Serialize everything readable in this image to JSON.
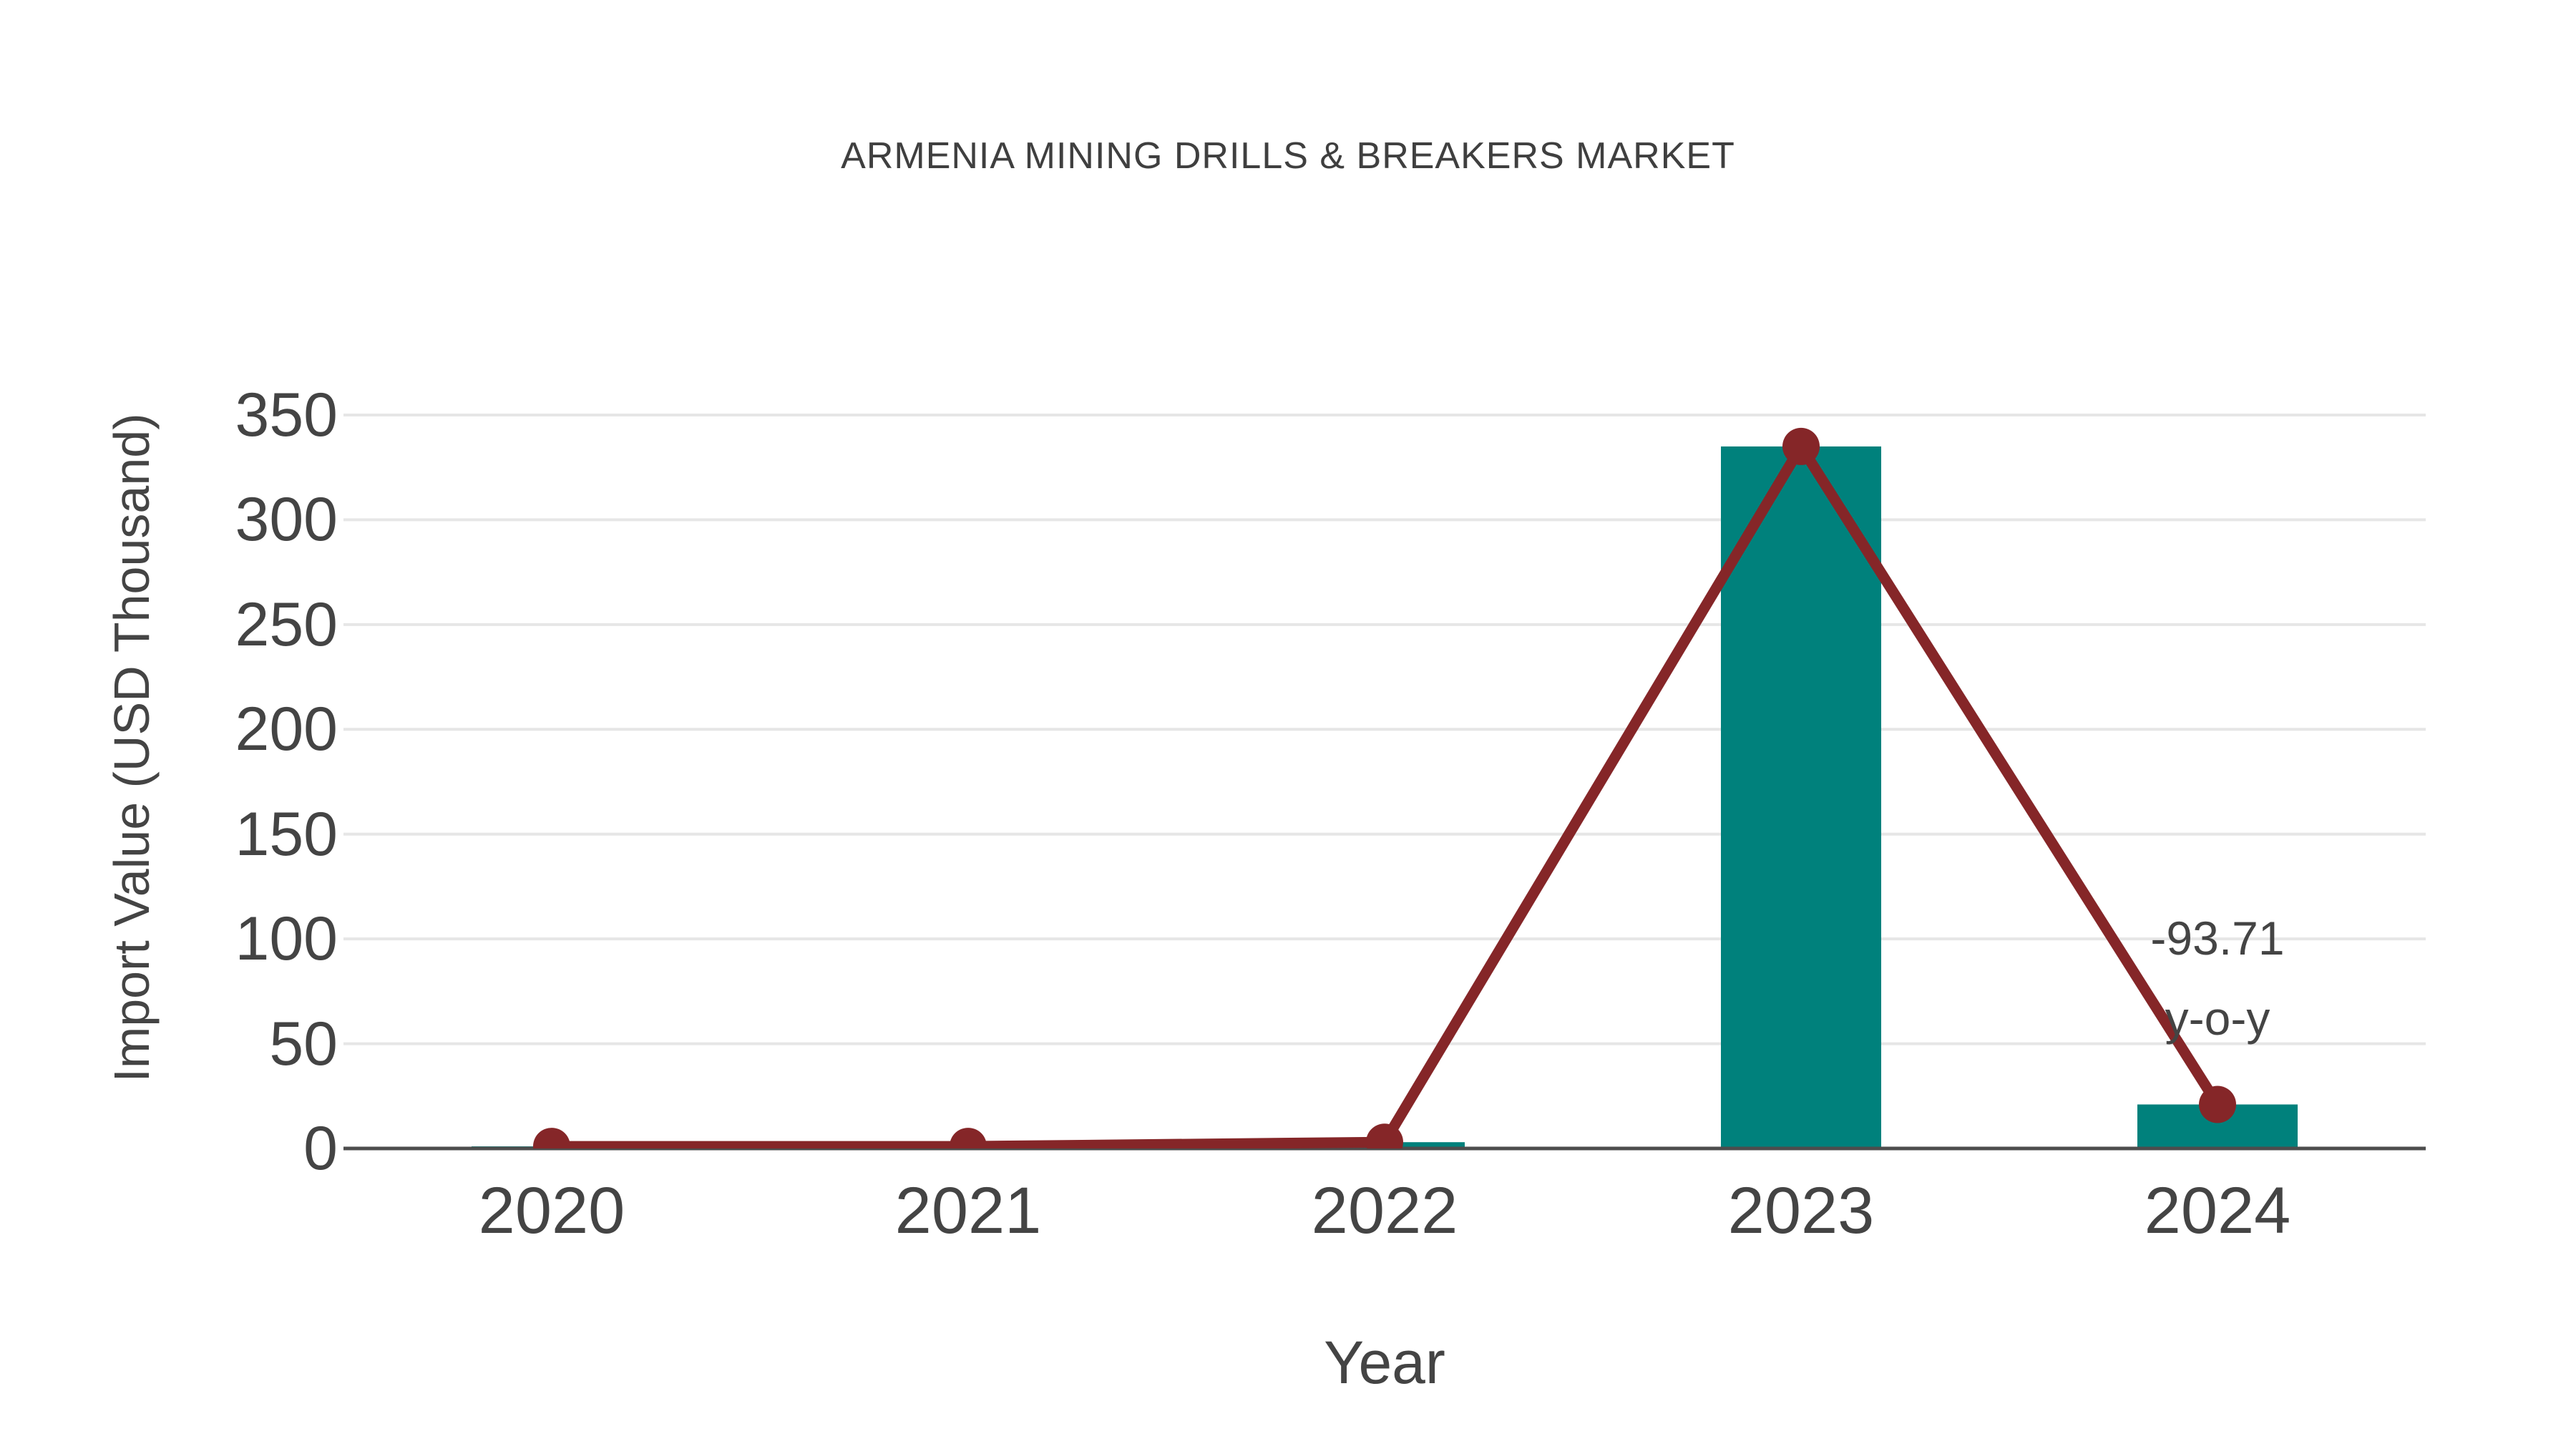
{
  "header": {
    "title": "ARMENIA MINING DRILLS & BREAKERS MARKET"
  },
  "chart_data": {
    "type": "bar",
    "categories": [
      "2020",
      "2021",
      "2022",
      "2023",
      "2024"
    ],
    "series": [
      {
        "name": "import-value-bars",
        "type": "bar",
        "values": [
          1,
          1,
          3,
          335,
          21
        ]
      },
      {
        "name": "import-value-trend-line",
        "type": "line",
        "values": [
          1,
          1,
          3,
          335,
          21
        ]
      }
    ],
    "title": "ARMENIA MINING DRILLS & BREAKERS MARKET",
    "xlabel": "Year",
    "ylabel": "Import Value (USD Thousand)",
    "ylim": [
      0,
      350
    ],
    "yticks": [
      0,
      50,
      100,
      150,
      200,
      250,
      300,
      350
    ],
    "grid": "horizontal",
    "legend": "none",
    "annotation": {
      "text_line1": "-93.71",
      "text_line2": "y-o-y",
      "anchor_category": "2024"
    }
  },
  "colors": {
    "bar": "#00817c",
    "line": "#852628",
    "grid": "#e6e6e6",
    "axis": "#4d4d4d",
    "text": "#444444",
    "title_text": "#3f3f3f",
    "background": "#ffffff"
  }
}
